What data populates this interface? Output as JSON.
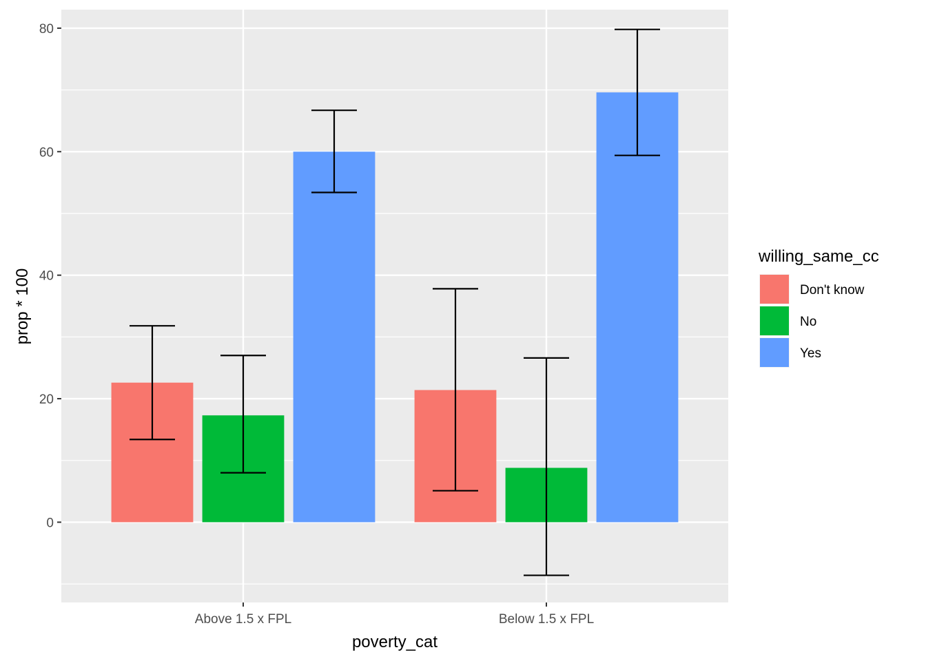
{
  "chart_data": {
    "type": "bar",
    "title": "",
    "xlabel": "poverty_cat",
    "ylabel": "prop * 100",
    "categories": [
      "Above 1.5 x FPL",
      "Below 1.5 x FPL"
    ],
    "ylim": [
      -13,
      83
    ],
    "yticks": [
      0,
      20,
      40,
      60,
      80
    ],
    "grid": true,
    "legend": {
      "title": "willing_same_cc",
      "position": "right"
    },
    "series": [
      {
        "name": "Don't know",
        "color": "#F8766D",
        "values": [
          22.6,
          21.4
        ],
        "error_low": [
          13.4,
          5.1
        ],
        "error_high": [
          31.8,
          37.8
        ]
      },
      {
        "name": "No",
        "color": "#00BA38",
        "values": [
          17.3,
          8.8
        ],
        "error_low": [
          8.0,
          -8.6
        ],
        "error_high": [
          27.0,
          26.6
        ]
      },
      {
        "name": "Yes",
        "color": "#619CFF",
        "values": [
          60.0,
          69.6
        ],
        "error_low": [
          53.4,
          59.4
        ],
        "error_high": [
          66.7,
          79.8
        ]
      }
    ]
  }
}
